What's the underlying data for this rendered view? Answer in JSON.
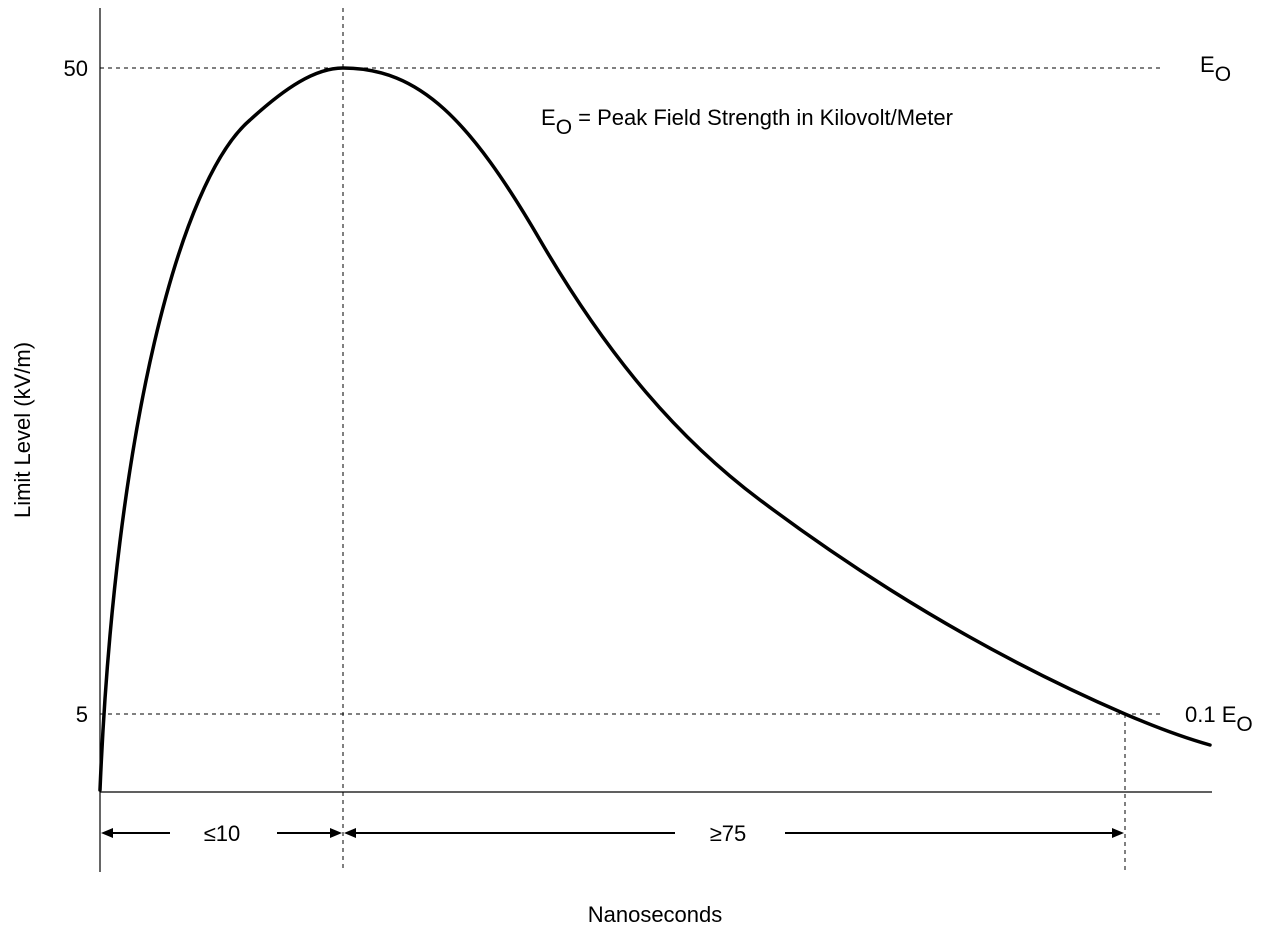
{
  "chart_data": {
    "type": "line",
    "title": "",
    "xlabel": "Nanoseconds",
    "ylabel": "Limit Level (kV/m)",
    "y_ticks": [
      "50",
      "5"
    ],
    "annotation": {
      "prefix": "E",
      "subscript": "O",
      "text": " = Peak Field Strength in Kilovolt/Meter"
    },
    "level_labels": {
      "peak": {
        "main": "E",
        "sub": "O"
      },
      "tenth": {
        "main": "0.1 E",
        "sub": "O"
      }
    },
    "intervals": [
      {
        "label": "≤10"
      },
      {
        "label": "≥75"
      }
    ],
    "grid": false,
    "legend": "none"
  }
}
